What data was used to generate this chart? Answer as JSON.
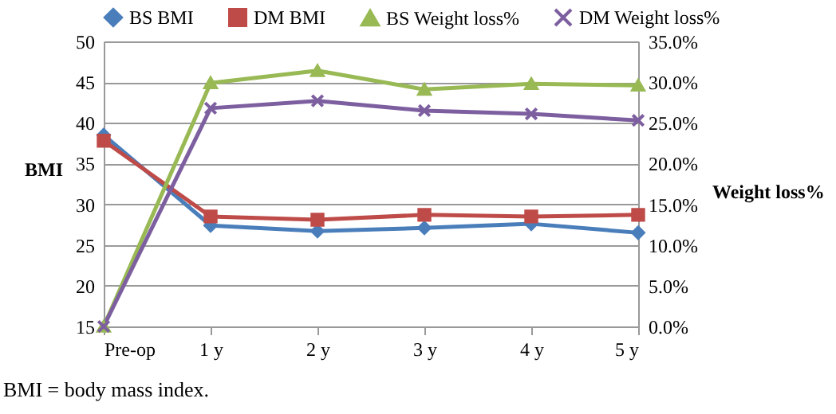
{
  "chart_data": {
    "type": "line",
    "categories": [
      "Pre-op",
      "1 y",
      "2 y",
      "3 y",
      "4 y",
      "5 y"
    ],
    "ylabel": "BMI",
    "y2label": "Weight loss%",
    "ylim": [
      15,
      50
    ],
    "yticks": [
      15,
      20,
      25,
      30,
      35,
      40,
      45,
      50
    ],
    "y2lim": [
      0,
      35
    ],
    "y2ticks": [
      {
        "value": 0,
        "label": "0.0%"
      },
      {
        "value": 5,
        "label": "5.0%"
      },
      {
        "value": 10,
        "label": "10.0%"
      },
      {
        "value": 15,
        "label": "15.0%"
      },
      {
        "value": 20,
        "label": "20.0%"
      },
      {
        "value": 25,
        "label": "25.0%"
      },
      {
        "value": 30,
        "label": "30.0%"
      },
      {
        "value": 35,
        "label": "35.0%"
      }
    ],
    "series": [
      {
        "name": "BS BMI",
        "color": "#4a7ebb",
        "marker": "diamond",
        "values": [
          38.5,
          27.4,
          26.7,
          27.1,
          27.6,
          26.5
        ]
      },
      {
        "name": "DM BMI",
        "color": "#be4b48",
        "marker": "square",
        "values": [
          37.8,
          28.5,
          28.1,
          28.7,
          28.5,
          28.7
        ]
      },
      {
        "name": "BS Weight loss%",
        "color": "#98b954",
        "marker": "triangle",
        "axis": "y2",
        "values": [
          0,
          29.9,
          31.4,
          29.1,
          29.8,
          29.6
        ]
      },
      {
        "name": "DM Weight loss%",
        "color": "#7d5fa0",
        "marker": "cross",
        "axis": "y2",
        "values": [
          0,
          26.8,
          27.7,
          26.5,
          26.1,
          25.3
        ]
      }
    ],
    "grid": "y",
    "legend": "top",
    "line_style": "solid",
    "annotations": [
      "BMI = body mass index."
    ]
  }
}
